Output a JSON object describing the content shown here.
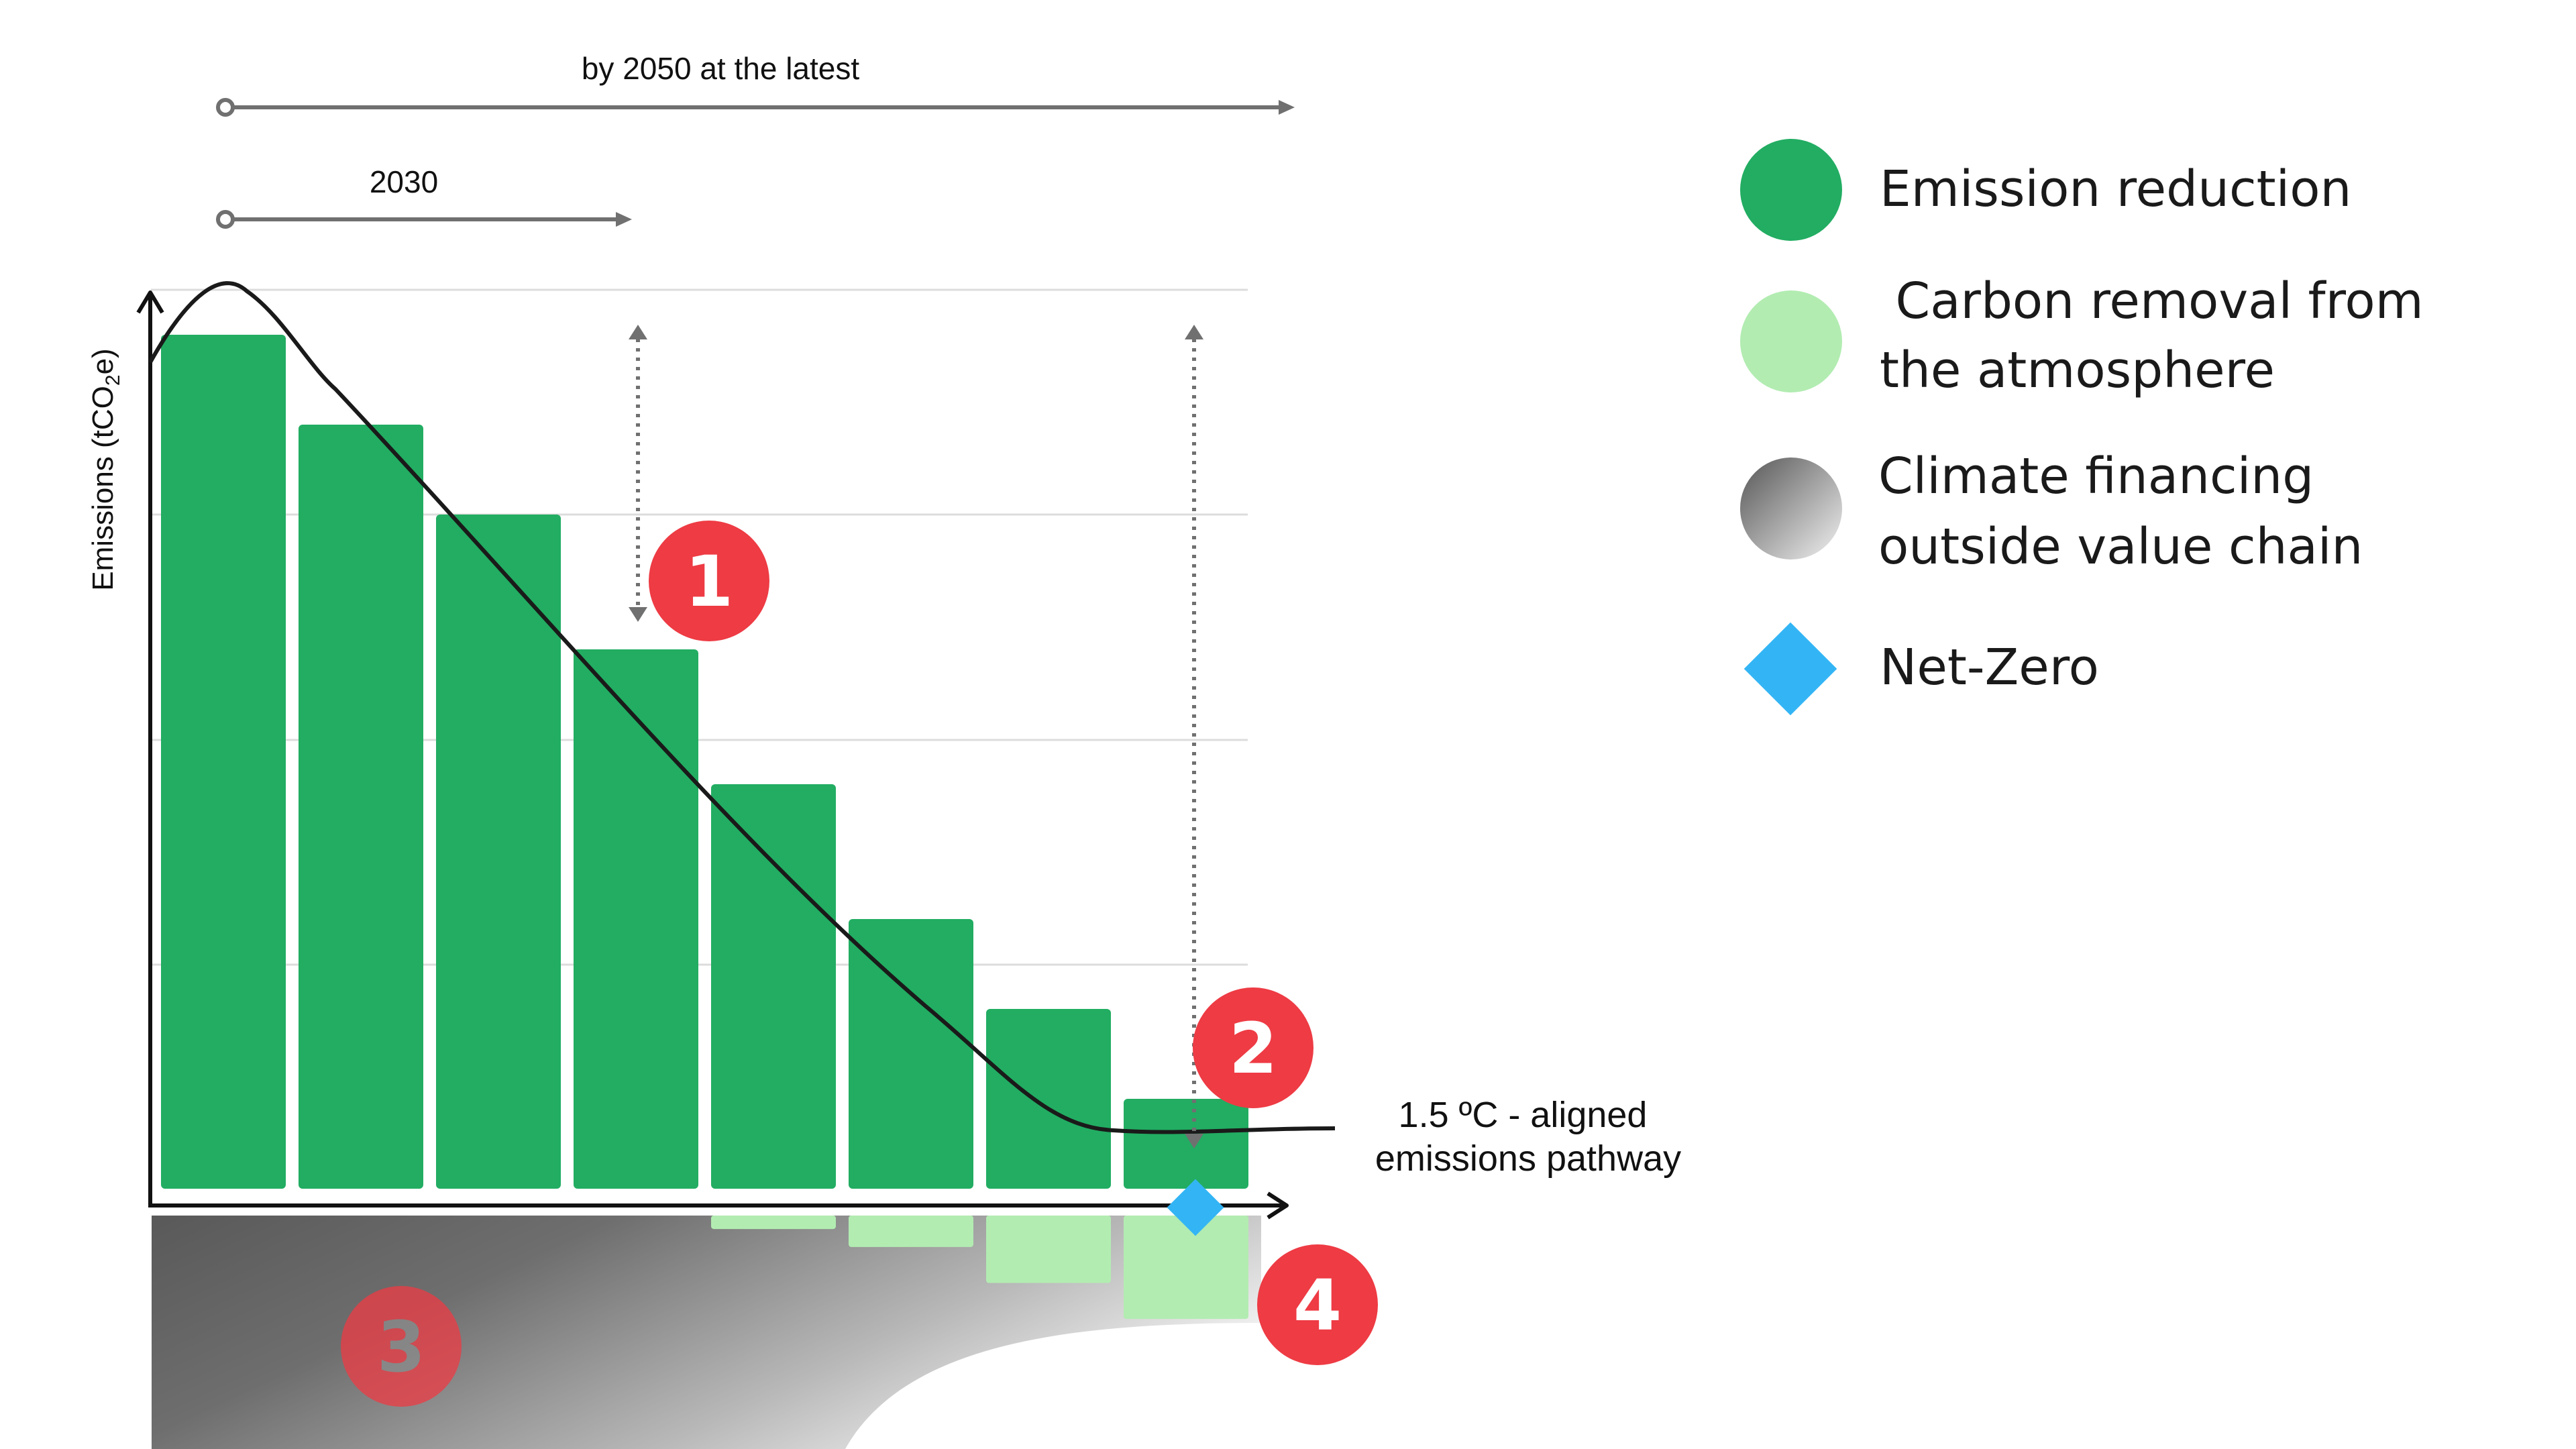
{
  "timeline": {
    "long_label": "by 2050 at the latest",
    "short_label": "2030"
  },
  "axis": {
    "y_label": "Emissions (tCO",
    "y_label_sub": "2",
    "y_label_end": "e)"
  },
  "pathway_label": {
    "line1": "1.5 ºC - aligned",
    "line2": "emissions pathway"
  },
  "badges": [
    "1",
    "2",
    "3",
    "4"
  ],
  "legend": [
    {
      "line1": "Emission reduction",
      "line2": "",
      "swatch": "#22ad62",
      "shape": "circle"
    },
    {
      "line1": " Carbon removal from",
      "line2": "the atmosphere",
      "swatch": "#b2ecb1",
      "shape": "circle"
    },
    {
      "line1": "Climate financing",
      "line2": "outside value chain",
      "swatch": "gradient-gray",
      "shape": "circle"
    },
    {
      "line1": "Net-Zero",
      "line2": "",
      "swatch": "#33b5f5",
      "shape": "diamond"
    }
  ],
  "chart_data": {
    "type": "bar",
    "categories": [
      "",
      "",
      "",
      "",
      "",
      "",
      "",
      ""
    ],
    "series": [
      {
        "values": [
          95,
          85,
          75,
          60,
          45,
          30,
          20,
          10
        ]
      },
      {
        "values": [
          0,
          0,
          0,
          0,
          1.5,
          3.5,
          7.5,
          11.5
        ]
      }
    ],
    "pathway_curve": "1.5 ºC-aligned pathway: rises to a peak, declines steeply, levels off near the Net-Zero point",
    "ylim": [
      -25,
      100
    ],
    "grid": true,
    "colors": {
      "emission_reduction": "#22ad62",
      "carbon_removal": "#b2ecb1",
      "net_zero": "#33b5f5",
      "badge": "#ee3b44"
    }
  }
}
